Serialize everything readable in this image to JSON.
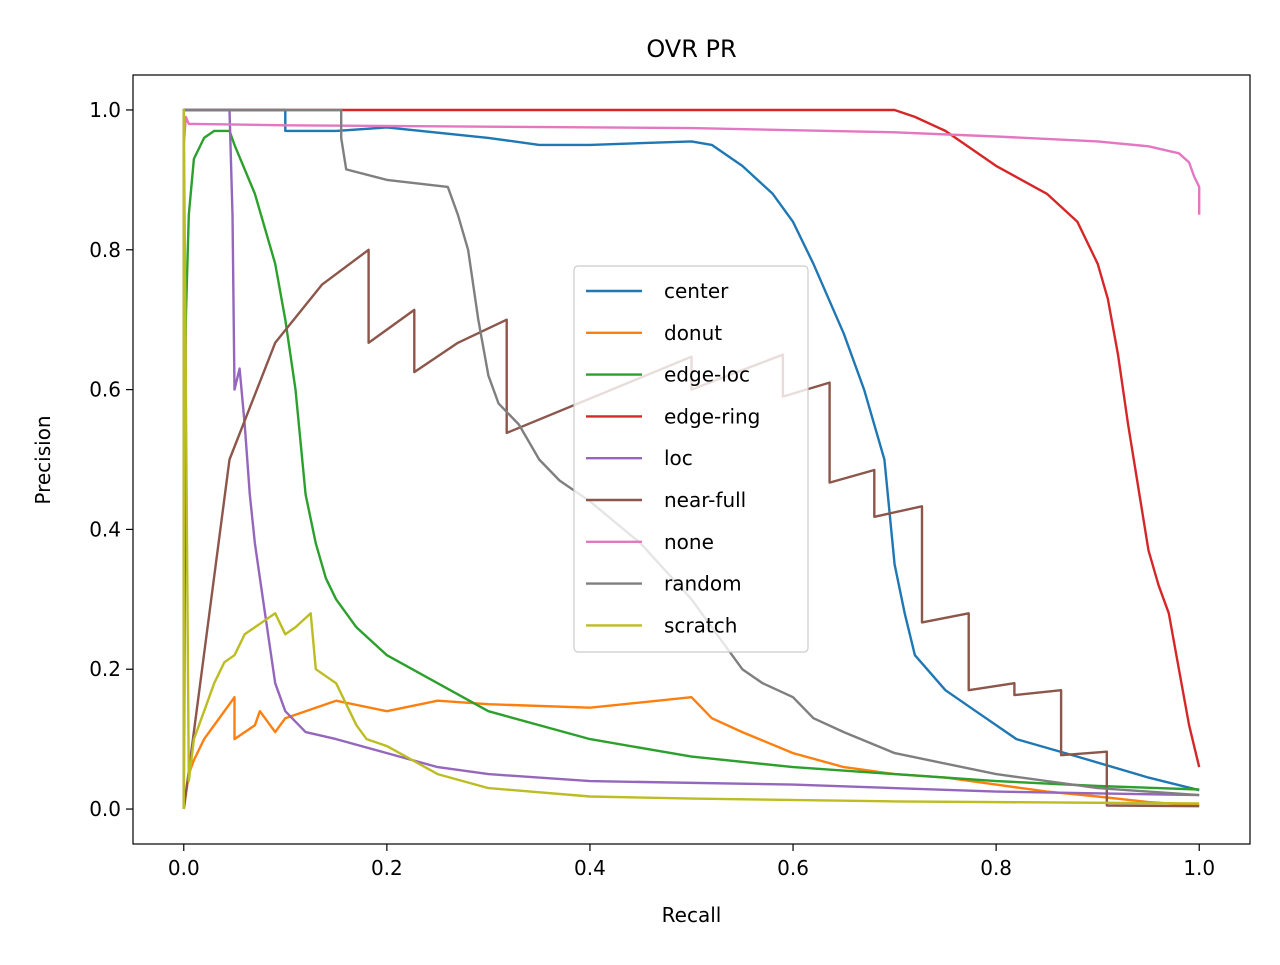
{
  "chart_data": {
    "type": "line",
    "title": "OVR PR",
    "xlabel": "Recall",
    "ylabel": "Precision",
    "xlim": [
      -0.05,
      1.05
    ],
    "ylim": [
      -0.05,
      1.05
    ],
    "xticks": [
      "0.0",
      "0.2",
      "0.4",
      "0.6",
      "0.8",
      "1.0"
    ],
    "yticks": [
      "0.0",
      "0.2",
      "0.4",
      "0.6",
      "0.8",
      "1.0"
    ],
    "grid": false,
    "legend_position": "center",
    "series": [
      {
        "name": "center",
        "color": "#1f77b4",
        "x": [
          0.0,
          0.0,
          0.1,
          0.1,
          0.15,
          0.2,
          0.3,
          0.35,
          0.4,
          0.5,
          0.52,
          0.55,
          0.58,
          0.6,
          0.62,
          0.65,
          0.67,
          0.69,
          0.7,
          0.71,
          0.72,
          0.75,
          0.78,
          0.82,
          0.88,
          0.95,
          1.0
        ],
        "y": [
          0.0,
          1.0,
          1.0,
          0.97,
          0.97,
          0.975,
          0.96,
          0.95,
          0.95,
          0.955,
          0.95,
          0.92,
          0.88,
          0.84,
          0.78,
          0.68,
          0.6,
          0.5,
          0.35,
          0.28,
          0.22,
          0.17,
          0.14,
          0.1,
          0.075,
          0.045,
          0.027
        ]
      },
      {
        "name": "donut",
        "color": "#ff7f0e",
        "x": [
          0.0,
          0.005,
          0.01,
          0.02,
          0.035,
          0.05,
          0.05,
          0.07,
          0.075,
          0.09,
          0.1,
          0.12,
          0.15,
          0.2,
          0.25,
          0.3,
          0.4,
          0.5,
          0.52,
          0.55,
          0.6,
          0.65,
          0.7,
          0.75,
          0.8,
          0.85,
          0.9,
          0.95,
          1.0
        ],
        "y": [
          0.0,
          0.05,
          0.07,
          0.1,
          0.13,
          0.16,
          0.1,
          0.12,
          0.14,
          0.11,
          0.13,
          0.14,
          0.155,
          0.14,
          0.155,
          0.15,
          0.145,
          0.16,
          0.13,
          0.11,
          0.08,
          0.06,
          0.05,
          0.045,
          0.035,
          0.025,
          0.018,
          0.01,
          0.005
        ]
      },
      {
        "name": "edge-loc",
        "color": "#2ca02c",
        "x": [
          0.0,
          0.002,
          0.005,
          0.01,
          0.02,
          0.03,
          0.045,
          0.05,
          0.07,
          0.09,
          0.1,
          0.11,
          0.12,
          0.13,
          0.14,
          0.15,
          0.17,
          0.2,
          0.25,
          0.3,
          0.4,
          0.5,
          0.6,
          0.7,
          0.8,
          0.9,
          1.0
        ],
        "y": [
          0.0,
          0.7,
          0.85,
          0.93,
          0.96,
          0.97,
          0.97,
          0.95,
          0.88,
          0.78,
          0.7,
          0.6,
          0.45,
          0.38,
          0.33,
          0.3,
          0.26,
          0.22,
          0.18,
          0.14,
          0.1,
          0.075,
          0.06,
          0.05,
          0.04,
          0.033,
          0.028
        ]
      },
      {
        "name": "edge-ring",
        "color": "#d62728",
        "x": [
          0.0,
          0.0,
          0.7,
          0.72,
          0.75,
          0.77,
          0.8,
          0.85,
          0.88,
          0.9,
          0.91,
          0.92,
          0.93,
          0.94,
          0.95,
          0.96,
          0.97,
          0.98,
          0.99,
          1.0
        ],
        "y": [
          0.0,
          1.0,
          1.0,
          0.99,
          0.97,
          0.95,
          0.92,
          0.88,
          0.84,
          0.78,
          0.73,
          0.65,
          0.55,
          0.46,
          0.37,
          0.32,
          0.28,
          0.2,
          0.12,
          0.06
        ]
      },
      {
        "name": "loc",
        "color": "#9467bd",
        "x": [
          0.0,
          0.0,
          0.045,
          0.048,
          0.05,
          0.055,
          0.06,
          0.065,
          0.07,
          0.08,
          0.09,
          0.1,
          0.12,
          0.15,
          0.2,
          0.25,
          0.3,
          0.4,
          0.6,
          0.8,
          1.0
        ],
        "y": [
          0.0,
          1.0,
          1.0,
          0.85,
          0.6,
          0.63,
          0.55,
          0.45,
          0.38,
          0.28,
          0.18,
          0.14,
          0.11,
          0.1,
          0.08,
          0.06,
          0.05,
          0.04,
          0.035,
          0.025,
          0.02
        ]
      },
      {
        "name": "near-full",
        "color": "#8c564b",
        "x": [
          0.0,
          0.045,
          0.09,
          0.136,
          0.182,
          0.182,
          0.227,
          0.227,
          0.27,
          0.318,
          0.318,
          0.5,
          0.5,
          0.59,
          0.59,
          0.636,
          0.636,
          0.68,
          0.68,
          0.727,
          0.727,
          0.773,
          0.773,
          0.818,
          0.818,
          0.864,
          0.864,
          0.909,
          0.909,
          1.0
        ],
        "y": [
          0.0,
          0.5,
          0.667,
          0.75,
          0.8,
          0.667,
          0.714,
          0.625,
          0.667,
          0.7,
          0.538,
          0.647,
          0.6,
          0.65,
          0.59,
          0.61,
          0.467,
          0.485,
          0.418,
          0.433,
          0.267,
          0.28,
          0.17,
          0.18,
          0.163,
          0.17,
          0.077,
          0.082,
          0.005,
          0.004
        ]
      },
      {
        "name": "none",
        "color": "#e377c2",
        "x": [
          0.0,
          0.002,
          0.005,
          0.01,
          0.1,
          0.3,
          0.5,
          0.7,
          0.8,
          0.9,
          0.95,
          0.98,
          0.99,
          0.995,
          1.0,
          1.0
        ],
        "y": [
          0.95,
          0.99,
          0.98,
          0.98,
          0.978,
          0.976,
          0.974,
          0.968,
          0.962,
          0.955,
          0.948,
          0.938,
          0.925,
          0.905,
          0.89,
          0.85
        ]
      },
      {
        "name": "random",
        "color": "#7f7f7f",
        "x": [
          0.0,
          0.0,
          0.155,
          0.155,
          0.16,
          0.2,
          0.26,
          0.27,
          0.28,
          0.29,
          0.3,
          0.31,
          0.33,
          0.35,
          0.37,
          0.4,
          0.45,
          0.5,
          0.55,
          0.57,
          0.6,
          0.62,
          0.65,
          0.7,
          0.8,
          0.9,
          1.0
        ],
        "y": [
          0.0,
          1.0,
          1.0,
          0.96,
          0.915,
          0.9,
          0.89,
          0.85,
          0.8,
          0.7,
          0.62,
          0.58,
          0.55,
          0.5,
          0.47,
          0.44,
          0.38,
          0.3,
          0.2,
          0.18,
          0.16,
          0.13,
          0.11,
          0.08,
          0.05,
          0.03,
          0.02
        ]
      },
      {
        "name": "scratch",
        "color": "#bcbd22",
        "x": [
          0.0,
          0.0,
          0.005,
          0.01,
          0.02,
          0.03,
          0.04,
          0.05,
          0.06,
          0.07,
          0.08,
          0.09,
          0.1,
          0.11,
          0.125,
          0.13,
          0.14,
          0.15,
          0.17,
          0.18,
          0.2,
          0.25,
          0.3,
          0.4,
          0.5,
          0.7,
          1.0
        ],
        "y": [
          0.0,
          1.0,
          0.04,
          0.1,
          0.14,
          0.18,
          0.21,
          0.22,
          0.25,
          0.26,
          0.27,
          0.28,
          0.25,
          0.26,
          0.28,
          0.2,
          0.19,
          0.18,
          0.12,
          0.1,
          0.09,
          0.05,
          0.03,
          0.018,
          0.015,
          0.011,
          0.008
        ]
      }
    ]
  }
}
